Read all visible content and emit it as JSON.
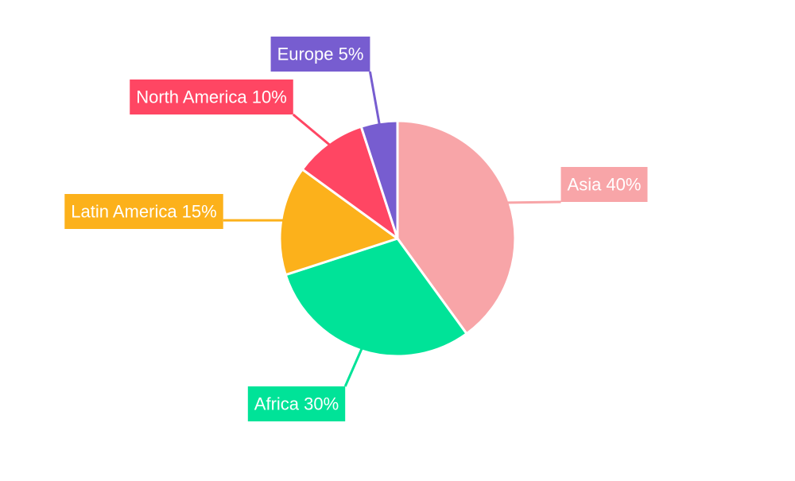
{
  "chart_data": {
    "type": "pie",
    "title": "",
    "start_angle_deg": 0,
    "direction": "clockwise",
    "slices": [
      {
        "label": "Asia",
        "value": 40,
        "text": "Asia 40%",
        "color": "#F8A5A8"
      },
      {
        "label": "Africa",
        "value": 30,
        "text": "Africa 30%",
        "color": "#00E398"
      },
      {
        "label": "Latin America",
        "value": 15,
        "text": "Latin America 15%",
        "color": "#FCB11B"
      },
      {
        "label": "North America",
        "value": 10,
        "text": "North America 10%",
        "color": "#FF4663"
      },
      {
        "label": "Europe",
        "value": 5,
        "text": "Europe 5%",
        "color": "#775DD0"
      }
    ]
  }
}
